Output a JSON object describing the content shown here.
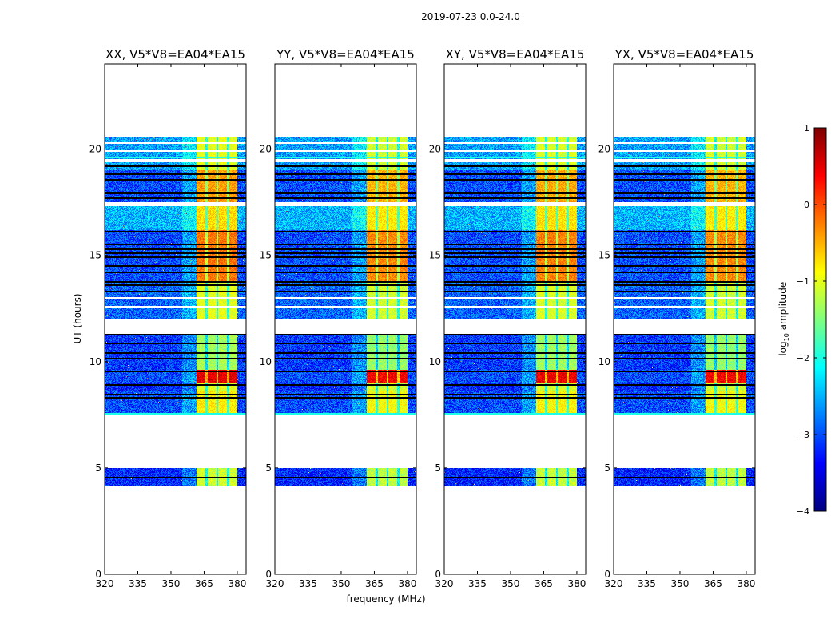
{
  "figure": {
    "suptitle": "2019-07-23 0.0-24.0",
    "xlabel": "frequency (MHz)",
    "ylabel": "UT (hours)",
    "colorbar_label_prefix": "log",
    "colorbar_label_sub": "10",
    "colorbar_label_suffix": " amplitude"
  },
  "chart_data": {
    "type": "heatmap",
    "panels": [
      {
        "title": "XX, V5*V8=EA04*EA15",
        "rfi_offset": 0.0
      },
      {
        "title": "YY, V5*V8=EA04*EA15",
        "rfi_offset": -0.1
      },
      {
        "title": "XY, V5*V8=EA04*EA15",
        "rfi_offset": -0.05
      },
      {
        "title": "YX, V5*V8=EA04*EA15",
        "rfi_offset": -0.1
      }
    ],
    "xlim": [
      320,
      384
    ],
    "ylim": [
      0,
      24
    ],
    "xticks": [
      320,
      335,
      350,
      365,
      380
    ],
    "yticks": [
      0,
      5,
      10,
      15,
      20
    ],
    "colormap": "jet",
    "clim": [
      -4,
      1
    ],
    "cbar_ticks": [
      -4,
      -3,
      -2,
      -1,
      0,
      1
    ],
    "cbar_tick_labels": [
      "−4",
      "−3",
      "−2",
      "−1",
      "0",
      "1"
    ],
    "rfi_band_mhz": [
      361.5,
      380
    ],
    "rfi_dark_channels_mhz": [
      366,
      371,
      376
    ],
    "time_segments": [
      {
        "start": 4.15,
        "end": 5.0,
        "bg": -3.2,
        "rfi": -1.1
      },
      {
        "start": 7.5,
        "end": 8.6,
        "bg": -3.0,
        "rfi": -0.8
      },
      {
        "start": 8.6,
        "end": 9.0,
        "bg": -3.2,
        "rfi": -1.0
      },
      {
        "start": 9.0,
        "end": 9.6,
        "bg": -3.0,
        "rfi": 0.5
      },
      {
        "start": 9.6,
        "end": 11.3,
        "bg": -3.1,
        "rfi": -1.3
      },
      {
        "start": 12.0,
        "end": 13.8,
        "bg": -2.9,
        "rfi": -1.0
      },
      {
        "start": 13.8,
        "end": 16.2,
        "bg": -3.0,
        "rfi": -0.2
      },
      {
        "start": 16.2,
        "end": 17.3,
        "bg": -2.5,
        "rfi": -0.7
      },
      {
        "start": 17.5,
        "end": 19.0,
        "bg": -3.0,
        "rfi": -0.4
      },
      {
        "start": 19.0,
        "end": 20.6,
        "bg": -2.6,
        "rfi": -1.0
      }
    ],
    "flagged_rows_hours": [
      4.55,
      8.3,
      8.45,
      8.9,
      9.55,
      10.15,
      10.4,
      10.85,
      11.3,
      13.3,
      13.6,
      13.75,
      14.2,
      14.5,
      14.9,
      15.1,
      15.3,
      15.5,
      16.1,
      17.7,
      17.9,
      18.55,
      18.8,
      19.2
    ],
    "gap_rows_hours": [
      7.4,
      11.45,
      11.85,
      11.95,
      12.6,
      13.0,
      17.35,
      17.45,
      19.4,
      19.5,
      19.9,
      20.3
    ],
    "cyan_rows_hours": [
      7.55,
      11.65,
      19.6
    ]
  }
}
